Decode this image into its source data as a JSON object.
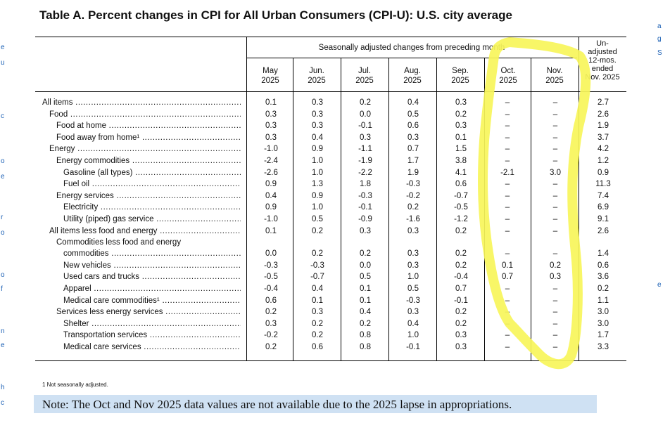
{
  "title": "Table A. Percent changes in CPI for All Urban Consumers (CPI-U): U.S. city average",
  "header": {
    "group_label": "Seasonally adjusted changes from preceding month",
    "columns": [
      {
        "month": "May",
        "year": "2025"
      },
      {
        "month": "Jun.",
        "year": "2025"
      },
      {
        "month": "Jul.",
        "year": "2025"
      },
      {
        "month": "Aug.",
        "year": "2025"
      },
      {
        "month": "Sep.",
        "year": "2025"
      },
      {
        "month": "Oct.",
        "year": "2025"
      },
      {
        "month": "Nov.",
        "year": "2025"
      }
    ],
    "last_column": [
      "Un-",
      "adjusted",
      "12-mos.",
      "ended",
      "Nov. 2025"
    ]
  },
  "rows": [
    {
      "label": "All items",
      "indent": 0,
      "values": [
        "0.1",
        "0.3",
        "0.2",
        "0.4",
        "0.3",
        "–",
        "–",
        "2.7"
      ]
    },
    {
      "label": "Food",
      "indent": 1,
      "values": [
        "0.3",
        "0.3",
        "0.0",
        "0.5",
        "0.2",
        "–",
        "–",
        "2.6"
      ]
    },
    {
      "label": "Food at home",
      "indent": 2,
      "values": [
        "0.3",
        "0.3",
        "-0.1",
        "0.6",
        "0.3",
        "–",
        "–",
        "1.9"
      ]
    },
    {
      "label": "Food away from home¹",
      "indent": 2,
      "values": [
        "0.3",
        "0.4",
        "0.3",
        "0.3",
        "0.1",
        "–",
        "–",
        "3.7"
      ]
    },
    {
      "label": "Energy",
      "indent": 1,
      "values": [
        "-1.0",
        "0.9",
        "-1.1",
        "0.7",
        "1.5",
        "–",
        "–",
        "4.2"
      ]
    },
    {
      "label": "Energy commodities",
      "indent": 2,
      "values": [
        "-2.4",
        "1.0",
        "-1.9",
        "1.7",
        "3.8",
        "–",
        "–",
        "1.2"
      ]
    },
    {
      "label": "Gasoline (all types)",
      "indent": 3,
      "values": [
        "-2.6",
        "1.0",
        "-2.2",
        "1.9",
        "4.1",
        "-2.1",
        "3.0",
        "0.9"
      ]
    },
    {
      "label": "Fuel oil",
      "indent": 3,
      "values": [
        "0.9",
        "1.3",
        "1.8",
        "-0.3",
        "0.6",
        "–",
        "–",
        "11.3"
      ]
    },
    {
      "label": "Energy services",
      "indent": 2,
      "values": [
        "0.4",
        "0.9",
        "-0.3",
        "-0.2",
        "-0.7",
        "–",
        "–",
        "7.4"
      ]
    },
    {
      "label": "Electricity",
      "indent": 3,
      "values": [
        "0.9",
        "1.0",
        "-0.1",
        "0.2",
        "-0.5",
        "–",
        "–",
        "6.9"
      ]
    },
    {
      "label": "Utility (piped) gas service",
      "indent": 3,
      "values": [
        "-1.0",
        "0.5",
        "-0.9",
        "-1.6",
        "-1.2",
        "–",
        "–",
        "9.1"
      ]
    },
    {
      "label": "All items less food and energy",
      "indent": 1,
      "values": [
        "0.1",
        "0.2",
        "0.3",
        "0.3",
        "0.2",
        "–",
        "–",
        "2.6"
      ]
    },
    {
      "label": "Commodities less food and energy",
      "label_line2": "commodities",
      "indent": 2,
      "values": [
        "0.0",
        "0.2",
        "0.2",
        "0.3",
        "0.2",
        "–",
        "–",
        "1.4"
      ]
    },
    {
      "label": "New vehicles",
      "indent": 3,
      "values": [
        "-0.3",
        "-0.3",
        "0.0",
        "0.3",
        "0.2",
        "0.1",
        "0.2",
        "0.6"
      ]
    },
    {
      "label": "Used cars and trucks",
      "indent": 3,
      "values": [
        "-0.5",
        "-0.7",
        "0.5",
        "1.0",
        "-0.4",
        "0.7",
        "0.3",
        "3.6"
      ]
    },
    {
      "label": "Apparel",
      "indent": 3,
      "values": [
        "-0.4",
        "0.4",
        "0.1",
        "0.5",
        "0.7",
        "–",
        "–",
        "0.2"
      ]
    },
    {
      "label": "Medical care commodities¹",
      "indent": 3,
      "values": [
        "0.6",
        "0.1",
        "0.1",
        "-0.3",
        "-0.1",
        "–",
        "–",
        "1.1"
      ]
    },
    {
      "label": "Services less energy services",
      "indent": 2,
      "values": [
        "0.2",
        "0.3",
        "0.4",
        "0.3",
        "0.2",
        "–",
        "–",
        "3.0"
      ]
    },
    {
      "label": "Shelter",
      "indent": 3,
      "values": [
        "0.3",
        "0.2",
        "0.2",
        "0.4",
        "0.2",
        "–",
        "–",
        "3.0"
      ]
    },
    {
      "label": "Transportation services",
      "indent": 3,
      "values": [
        "-0.2",
        "0.2",
        "0.8",
        "1.0",
        "0.3",
        "–",
        "–",
        "1.7"
      ]
    },
    {
      "label": "Medical care services",
      "indent": 3,
      "values": [
        "0.2",
        "0.6",
        "0.8",
        "-0.1",
        "0.3",
        "–",
        "–",
        "3.3"
      ]
    }
  ],
  "footnote": "1  Not seasonally adjusted.",
  "note": "Note: The Oct and Nov 2025 data values are not available due to the 2025 lapse in appropriations.",
  "colors": {
    "highlight": "#f7f55a",
    "note_background": "#cfe1f3"
  }
}
